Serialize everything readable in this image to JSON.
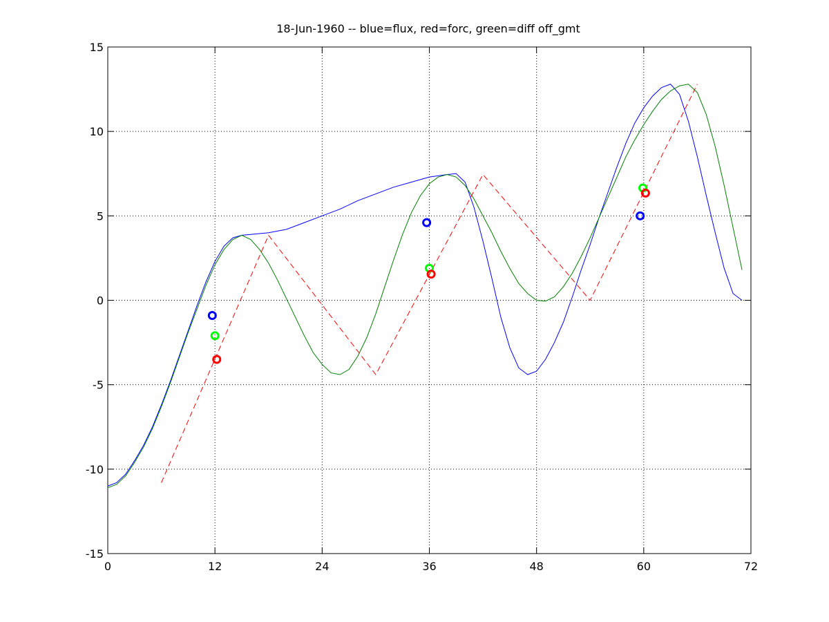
{
  "chart_data": {
    "type": "line",
    "title": "18-Jun-1960 -- blue=flux, red=forc, green=diff off_gmt",
    "xlim": [
      0,
      72
    ],
    "xticks": [
      0,
      12,
      24,
      36,
      48,
      60,
      72
    ],
    "ylim": [
      -15,
      15
    ],
    "yticks": [
      -15,
      -10,
      -5,
      0,
      5,
      10,
      15
    ],
    "grid": true,
    "series": [
      {
        "color": "#0000ff",
        "style": "solid",
        "x": [
          0,
          1,
          2,
          3,
          4,
          5,
          6,
          7,
          8,
          9,
          10,
          11,
          12,
          13,
          14,
          15,
          16,
          18,
          20,
          22,
          24,
          26,
          28,
          30,
          32,
          34,
          36,
          38,
          39,
          40,
          41,
          42,
          43,
          44,
          45,
          46,
          47,
          48,
          49,
          50,
          51,
          52,
          53,
          54,
          55,
          56,
          57,
          58,
          59,
          60,
          61,
          62,
          63,
          64,
          65,
          66,
          67,
          68,
          69,
          70,
          71
        ],
        "values": [
          -11,
          -10.8,
          -10.3,
          -9.5,
          -8.6,
          -7.5,
          -6.2,
          -4.8,
          -3.3,
          -1.8,
          -0.3,
          1.1,
          2.3,
          3.2,
          3.7,
          3.85,
          3.9,
          4.0,
          4.2,
          4.6,
          5.0,
          5.4,
          5.9,
          6.3,
          6.7,
          7.0,
          7.3,
          7.45,
          7.5,
          7.0,
          5.5,
          3.5,
          1.3,
          -1.0,
          -2.8,
          -4.0,
          -4.4,
          -4.2,
          -3.5,
          -2.5,
          -1.3,
          0.2,
          1.8,
          3.3,
          4.9,
          6.4,
          7.9,
          9.3,
          10.5,
          11.4,
          12.1,
          12.6,
          12.8,
          12.2,
          10.6,
          8.5,
          6.2,
          4.0,
          1.9,
          0.4,
          0
        ]
      },
      {
        "color": "#008000",
        "style": "solid",
        "x": [
          0,
          1,
          2,
          3,
          4,
          5,
          6,
          7,
          8,
          9,
          10,
          11,
          12,
          13,
          14,
          15,
          16,
          17,
          18,
          19,
          20,
          21,
          22,
          23,
          24,
          25,
          26,
          27,
          28,
          29,
          30,
          31,
          32,
          33,
          34,
          35,
          36,
          37,
          38,
          39,
          40,
          41,
          42,
          43,
          44,
          45,
          46,
          47,
          48,
          49,
          50,
          51,
          52,
          53,
          54,
          55,
          56,
          57,
          58,
          59,
          60,
          61,
          62,
          63,
          64,
          65,
          66,
          67,
          68,
          69,
          70,
          71
        ],
        "values": [
          -11.1,
          -10.9,
          -10.4,
          -9.6,
          -8.7,
          -7.6,
          -6.3,
          -4.9,
          -3.4,
          -1.9,
          -0.5,
          0.9,
          2.1,
          3.0,
          3.6,
          3.85,
          3.6,
          3.0,
          2.2,
          1.2,
          0.1,
          -1.0,
          -2.1,
          -3.1,
          -3.8,
          -4.3,
          -4.4,
          -4.1,
          -3.3,
          -2.2,
          -0.8,
          0.8,
          2.4,
          3.9,
          5.2,
          6.2,
          6.9,
          7.3,
          7.45,
          7.3,
          6.8,
          6.0,
          5.0,
          4.0,
          2.9,
          1.9,
          1.0,
          0.4,
          0.0,
          -0.05,
          0.2,
          0.8,
          1.6,
          2.6,
          3.7,
          4.9,
          6.1,
          7.3,
          8.5,
          9.5,
          10.4,
          11.2,
          11.9,
          12.4,
          12.7,
          12.8,
          12.3,
          11.0,
          9.1,
          6.8,
          4.3,
          1.8
        ]
      },
      {
        "color": "#ff0000",
        "style": "dashed",
        "x": [
          6,
          18,
          30,
          42,
          54,
          66
        ],
        "values": [
          -10.8,
          3.85,
          -4.4,
          7.45,
          0,
          12.8
        ]
      },
      {
        "color": "#0000ff",
        "style": "circle",
        "x": [
          11.7,
          35.7,
          59.6
        ],
        "values": [
          -0.9,
          4.6,
          5.0
        ]
      },
      {
        "color": "#00ff00",
        "style": "circle",
        "x": [
          12.0,
          36.0,
          59.9
        ],
        "values": [
          -2.1,
          1.9,
          6.65
        ]
      },
      {
        "color": "#ff0000",
        "style": "circle",
        "x": [
          12.2,
          36.2,
          60.2
        ],
        "values": [
          -3.5,
          1.55,
          6.35
        ]
      }
    ]
  }
}
